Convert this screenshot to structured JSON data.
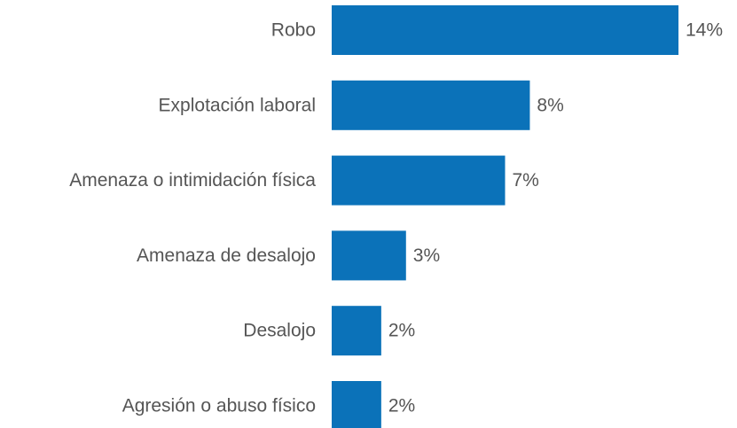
{
  "chart_data": {
    "type": "barh",
    "categories": [
      "Robo",
      "Explotación laboral",
      "Amenaza o intimidación física",
      "Amenaza de desalojo",
      "Desalojo",
      "Agresión o abuso físico"
    ],
    "values": [
      14,
      8,
      7,
      3,
      2,
      2
    ],
    "value_labels": [
      "14%",
      "8%",
      "7%",
      "3%",
      "2%",
      "2%"
    ],
    "color": "#0b72b9",
    "xlim": [
      0,
      14
    ]
  }
}
